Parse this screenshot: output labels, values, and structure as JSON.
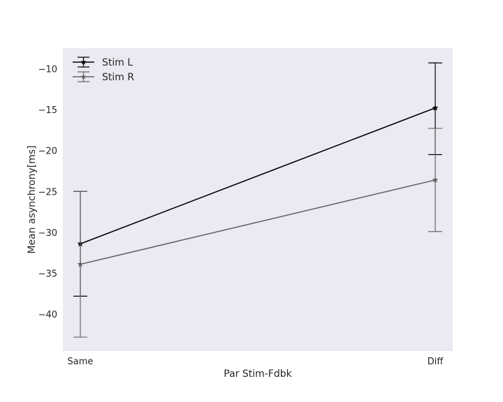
{
  "chart_data": {
    "type": "line",
    "xlabel": "Par Stim-Fdbk",
    "ylabel": "Mean asynchrony[ms]",
    "categories": [
      "Same",
      "Diff"
    ],
    "ylim": [
      -44.5,
      -7.5
    ],
    "yticks": [
      -10,
      -15,
      -20,
      -25,
      -30,
      -35,
      -40
    ],
    "grid": false,
    "legend_position": "top-left",
    "background": "#EAEAF2",
    "series": [
      {
        "name": "Stim L",
        "color": "#000000",
        "marker": "star",
        "values": [
          -31.4,
          -14.8
        ],
        "error_lower": [
          -37.8,
          -20.5
        ],
        "error_upper": [
          -25.0,
          -9.3
        ]
      },
      {
        "name": "Stim R",
        "color": "#666666",
        "marker": "star",
        "values": [
          -33.9,
          -23.6
        ],
        "error_lower": [
          -42.8,
          -29.9
        ],
        "error_upper": [
          -25.0,
          -17.3
        ]
      }
    ]
  }
}
